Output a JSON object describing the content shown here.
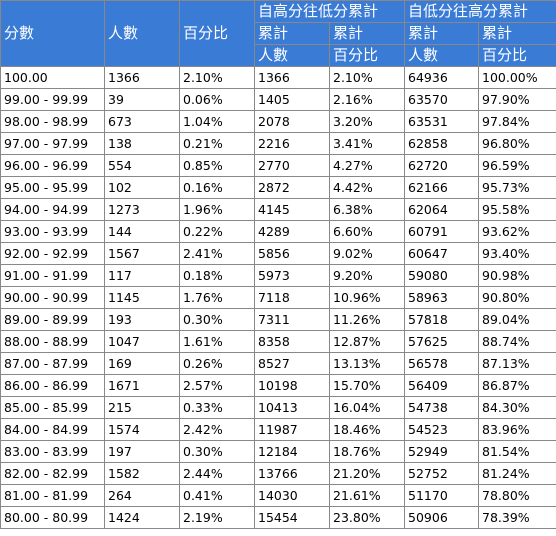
{
  "header": {
    "score": "分數",
    "count": "人數",
    "percent": "百分比",
    "high_to_low": "自高分往低分累計",
    "low_to_high": "自低分往高分累計",
    "cum_count": "累計",
    "cum_percent": "累計",
    "count2": "人數",
    "percent2": "百分比",
    "cum_count_b": "累計",
    "cum_percent_b": "累計",
    "count3": "人數",
    "percent3": "百分比"
  },
  "rows": [
    [
      "100.00",
      "1366",
      "2.10%",
      "1366",
      "2.10%",
      "64936",
      "100.00%"
    ],
    [
      "99.00 - 99.99",
      "39",
      "0.06%",
      "1405",
      "2.16%",
      "63570",
      "97.90%"
    ],
    [
      "98.00 - 98.99",
      "673",
      "1.04%",
      "2078",
      "3.20%",
      "63531",
      "97.84%"
    ],
    [
      "97.00 - 97.99",
      "138",
      "0.21%",
      "2216",
      "3.41%",
      "62858",
      "96.80%"
    ],
    [
      "96.00 - 96.99",
      "554",
      "0.85%",
      "2770",
      "4.27%",
      "62720",
      "96.59%"
    ],
    [
      "95.00 - 95.99",
      "102",
      "0.16%",
      "2872",
      "4.42%",
      "62166",
      "95.73%"
    ],
    [
      "94.00 - 94.99",
      "1273",
      "1.96%",
      "4145",
      "6.38%",
      "62064",
      "95.58%"
    ],
    [
      "93.00 - 93.99",
      "144",
      "0.22%",
      "4289",
      "6.60%",
      "60791",
      "93.62%"
    ],
    [
      "92.00 - 92.99",
      "1567",
      "2.41%",
      "5856",
      "9.02%",
      "60647",
      "93.40%"
    ],
    [
      "91.00 - 91.99",
      "117",
      "0.18%",
      "5973",
      "9.20%",
      "59080",
      "90.98%"
    ],
    [
      "90.00 - 90.99",
      "1145",
      "1.76%",
      "7118",
      "10.96%",
      "58963",
      "90.80%"
    ],
    [
      "89.00 - 89.99",
      "193",
      "0.30%",
      "7311",
      "11.26%",
      "57818",
      "89.04%"
    ],
    [
      "88.00 - 88.99",
      "1047",
      "1.61%",
      "8358",
      "12.87%",
      "57625",
      "88.74%"
    ],
    [
      "87.00 - 87.99",
      "169",
      "0.26%",
      "8527",
      "13.13%",
      "56578",
      "87.13%"
    ],
    [
      "86.00 - 86.99",
      "1671",
      "2.57%",
      "10198",
      "15.70%",
      "56409",
      "86.87%"
    ],
    [
      "85.00 - 85.99",
      "215",
      "0.33%",
      "10413",
      "16.04%",
      "54738",
      "84.30%"
    ],
    [
      "84.00 - 84.99",
      "1574",
      "2.42%",
      "11987",
      "18.46%",
      "54523",
      "83.96%"
    ],
    [
      "83.00 - 83.99",
      "197",
      "0.30%",
      "12184",
      "18.76%",
      "52949",
      "81.54%"
    ],
    [
      "82.00 - 82.99",
      "1582",
      "2.44%",
      "13766",
      "21.20%",
      "52752",
      "81.24%"
    ],
    [
      "81.00 - 81.99",
      "264",
      "0.41%",
      "14030",
      "21.61%",
      "51170",
      "78.80%"
    ],
    [
      "80.00 - 80.99",
      "1424",
      "2.19%",
      "15454",
      "23.80%",
      "50906",
      "78.39%"
    ]
  ]
}
